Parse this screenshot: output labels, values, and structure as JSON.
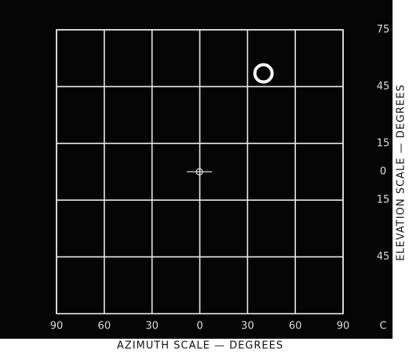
{
  "chart_data": {
    "type": "scatter",
    "xlabel": "AZIMUTH SCALE — DEGREES",
    "ylabel": "ELEVATION SCALE — DEGREES",
    "corner_label": "C",
    "series": [
      {
        "color": "#ffffff",
        "x": [
          40
        ],
        "values": [
          52
        ]
      }
    ],
    "xlim": [
      -90,
      90
    ],
    "xticks": [
      {
        "value": -90,
        "label": "90"
      },
      {
        "value": -60,
        "label": "60"
      },
      {
        "value": -30,
        "label": "30"
      },
      0,
      30,
      60,
      90
    ],
    "ylim": [
      -75,
      75
    ],
    "yticks": [
      75,
      45,
      15,
      0,
      {
        "value": -15,
        "label": "15"
      },
      {
        "value": -45,
        "label": "45"
      }
    ],
    "grid": true
  }
}
